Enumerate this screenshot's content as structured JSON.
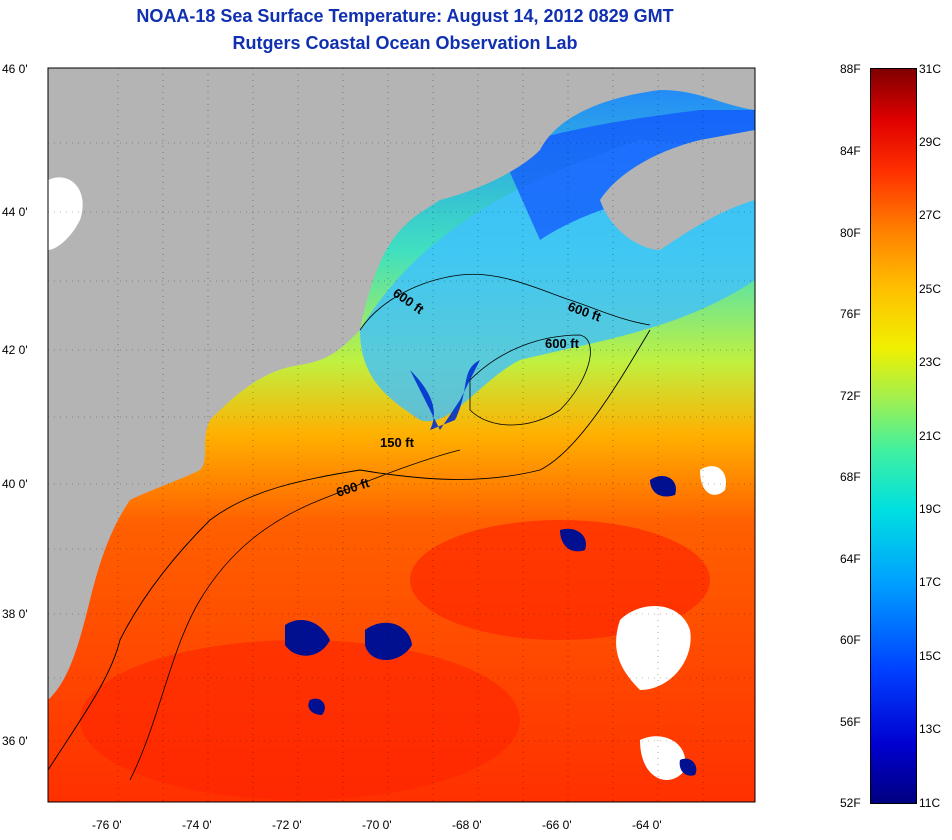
{
  "title": "NOAA-18 Sea Surface Temperature:  August 14, 2012 0829 GMT",
  "subtitle": "Rutgers Coastal Ocean Observation Lab",
  "lat_labels": [
    "46 0'",
    "44 0'",
    "42 0'",
    "40 0'",
    "38 0'",
    "36 0'"
  ],
  "lon_labels": [
    "-76 0'",
    "-74 0'",
    "-72 0'",
    "-70 0'",
    "-68 0'",
    "-66 0'",
    "-64 0'"
  ],
  "contour_labels": [
    "600 ft",
    "600 ft",
    "600 ft",
    "150 ft",
    "600 ft"
  ],
  "colorbar": {
    "fahrenheit": [
      "88F",
      "84F",
      "80F",
      "76F",
      "72F",
      "68F",
      "64F",
      "60F",
      "56F",
      "52F"
    ],
    "celsius": [
      "31C",
      "29C",
      "27C",
      "25C",
      "23C",
      "21C",
      "19C",
      "17C",
      "15C",
      "13C",
      "11C"
    ]
  },
  "colors": {
    "land": "#b4b4b4",
    "title": "#1030b0",
    "warm": "#ff4000",
    "cold": "#0040ff"
  }
}
